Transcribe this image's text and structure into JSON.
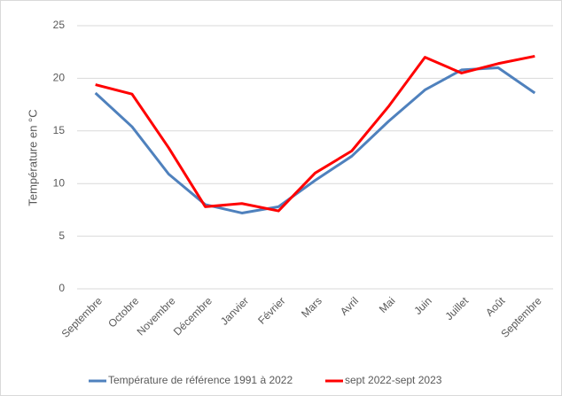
{
  "chart_data": {
    "type": "line",
    "y_label": "Température en °C",
    "categories": [
      "Septembre",
      "Octobre",
      "Novembre",
      "Décembre",
      "Janvier",
      "Février",
      "Mars",
      "Avril",
      "Mai",
      "Juin",
      "Juillet",
      "Août",
      "Septembre"
    ],
    "series": [
      {
        "name": "Température de référence 1991 à 2022",
        "color": "#4f81bd",
        "values": [
          18.6,
          15.4,
          10.9,
          8.0,
          7.2,
          7.8,
          10.3,
          12.6,
          15.9,
          18.9,
          20.8,
          21.0,
          18.6
        ]
      },
      {
        "name": "sept 2022-sept 2023",
        "color": "#ff0000",
        "values": [
          19.4,
          18.5,
          13.4,
          7.8,
          8.1,
          7.4,
          11.0,
          13.1,
          17.3,
          22.0,
          20.5,
          21.4,
          22.1
        ]
      }
    ],
    "ylim": [
      0,
      25
    ],
    "yticks": [
      0,
      5,
      10,
      15,
      20,
      25
    ],
    "grid": true,
    "legend": "bottom"
  }
}
